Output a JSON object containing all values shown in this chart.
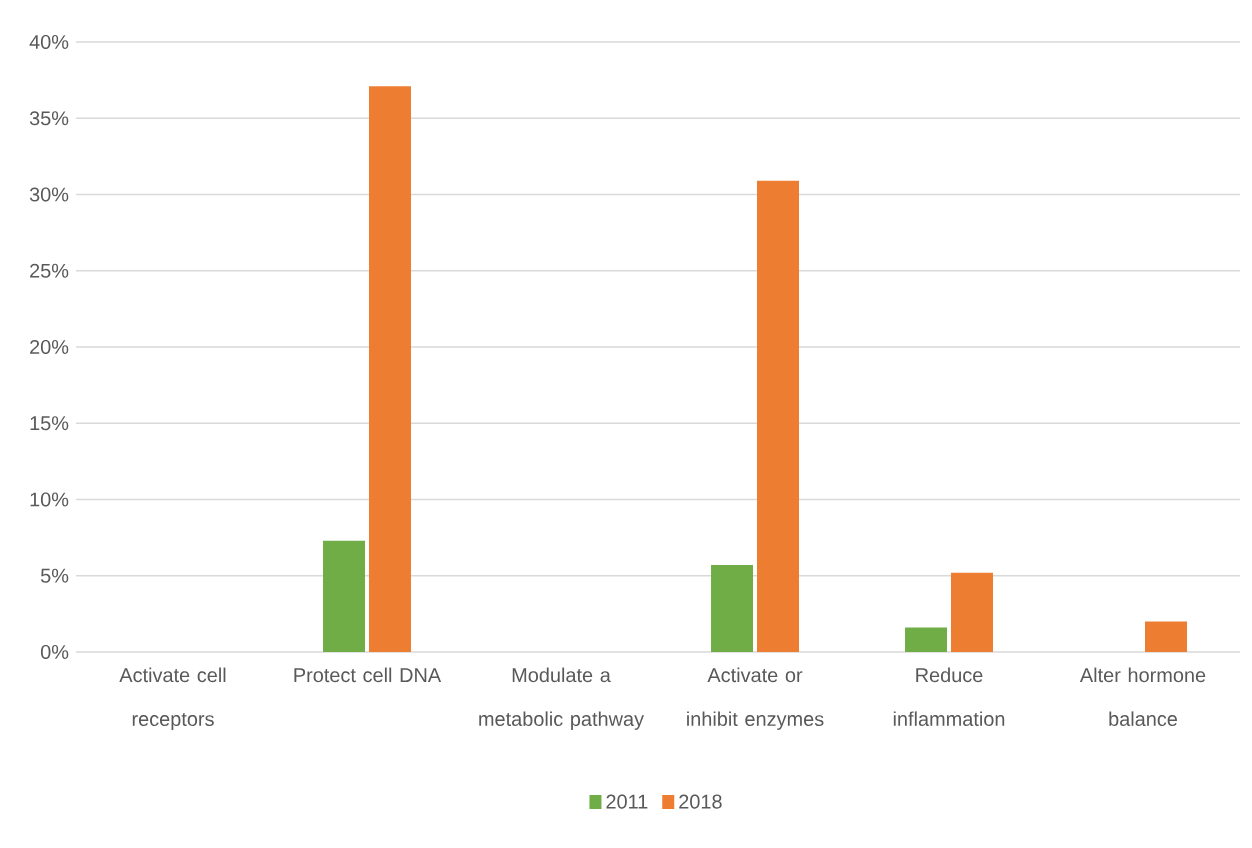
{
  "chart_data": {
    "type": "bar",
    "categories": [
      "Activate cell receptors",
      "Protect cell DNA",
      "Modulate a metabolic pathway",
      "Activate or inhibit enzymes",
      "Reduce inflammation",
      "Alter hormone balance"
    ],
    "series": [
      {
        "name": "2011",
        "color": "#70ad47",
        "values": [
          0,
          7.3,
          0,
          5.7,
          1.6,
          0
        ]
      },
      {
        "name": "2018",
        "color": "#ed7d31",
        "values": [
          0,
          37.1,
          0,
          30.9,
          5.2,
          2.0
        ]
      }
    ],
    "ylim": [
      0,
      40
    ],
    "yticks": [
      {
        "value": 0,
        "label": "0%"
      },
      {
        "value": 5,
        "label": "5%"
      },
      {
        "value": 10,
        "label": "10%"
      },
      {
        "value": 15,
        "label": "15%"
      },
      {
        "value": 20,
        "label": "20%"
      },
      {
        "value": 25,
        "label": "25%"
      },
      {
        "value": 30,
        "label": "30%"
      },
      {
        "value": 35,
        "label": "35%"
      },
      {
        "value": 40,
        "label": "40%"
      }
    ],
    "grid": "y",
    "legend": "bottom"
  }
}
